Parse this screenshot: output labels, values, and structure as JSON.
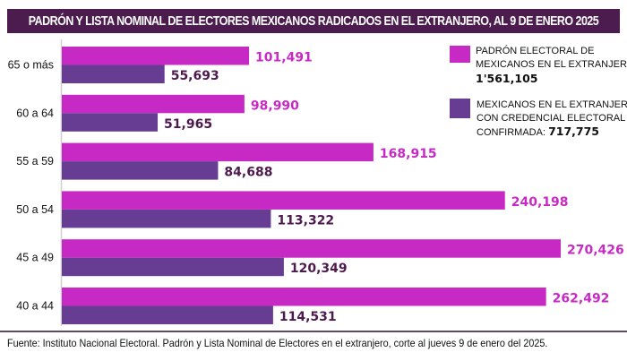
{
  "title": "PADRÓN Y LISTA NOMINAL DE ELECTORES MEXICANOS RADICADOS EN EL EXTRANJERO, AL 9 DE ENERO 2025",
  "footer": "Fuente: Instituto Nacional Electoral. Padrón y Lista Nominal de Electores en el extranjero, corte al jueves 9 de enero del 2025.",
  "colors": {
    "banner": "#4b1c4d",
    "padron": "#c72ac4",
    "credencial": "#673d94",
    "secondary_label": "#4e1a4e"
  },
  "legend": [
    {
      "line1": "PADRÓN ELECTORAL DE",
      "line2": "MEXICANOS  EN EL EXTRANJERO:",
      "line3_prefix": "",
      "total": "1'561,105"
    },
    {
      "line1": "MEXICANOS EN EL EXTRANJERO,",
      "line2": "CON CREDENCIAL ELECTORAL",
      "line3_prefix": "CONFIRMADA: ",
      "total": "717,775"
    }
  ],
  "chart_data": {
    "type": "bar",
    "orientation": "horizontal",
    "title": "PADRÓN Y LISTA NOMINAL DE ELECTORES MEXICANOS RADICADOS EN EL EXTRANJERO, AL 9 DE ENERO 2025",
    "xlabel": "",
    "ylabel": "",
    "categories": [
      "65 o más",
      "60 a 64",
      "55 a 59",
      "50 a 54",
      "45 a 49",
      "40 a 44"
    ],
    "series": [
      {
        "name": "Padrón electoral de mexicanos en el extranjero",
        "total": 1561105,
        "values": [
          101491,
          98990,
          168915,
          240198,
          270426,
          262492
        ],
        "labels": [
          "101,491",
          "98,990",
          "168,915",
          "240,198",
          "270,426",
          "262,492"
        ]
      },
      {
        "name": "Mexicanos en el extranjero, con credencial electoral confirmada",
        "total": 717775,
        "values": [
          55693,
          51965,
          84688,
          113322,
          120349,
          114531
        ],
        "labels": [
          "55,693",
          "51,965",
          "84,688",
          "113,322",
          "120,349",
          "114,531"
        ]
      }
    ],
    "xlim": [
      0,
      270426
    ],
    "grid": false,
    "legend_position": "top-right"
  }
}
